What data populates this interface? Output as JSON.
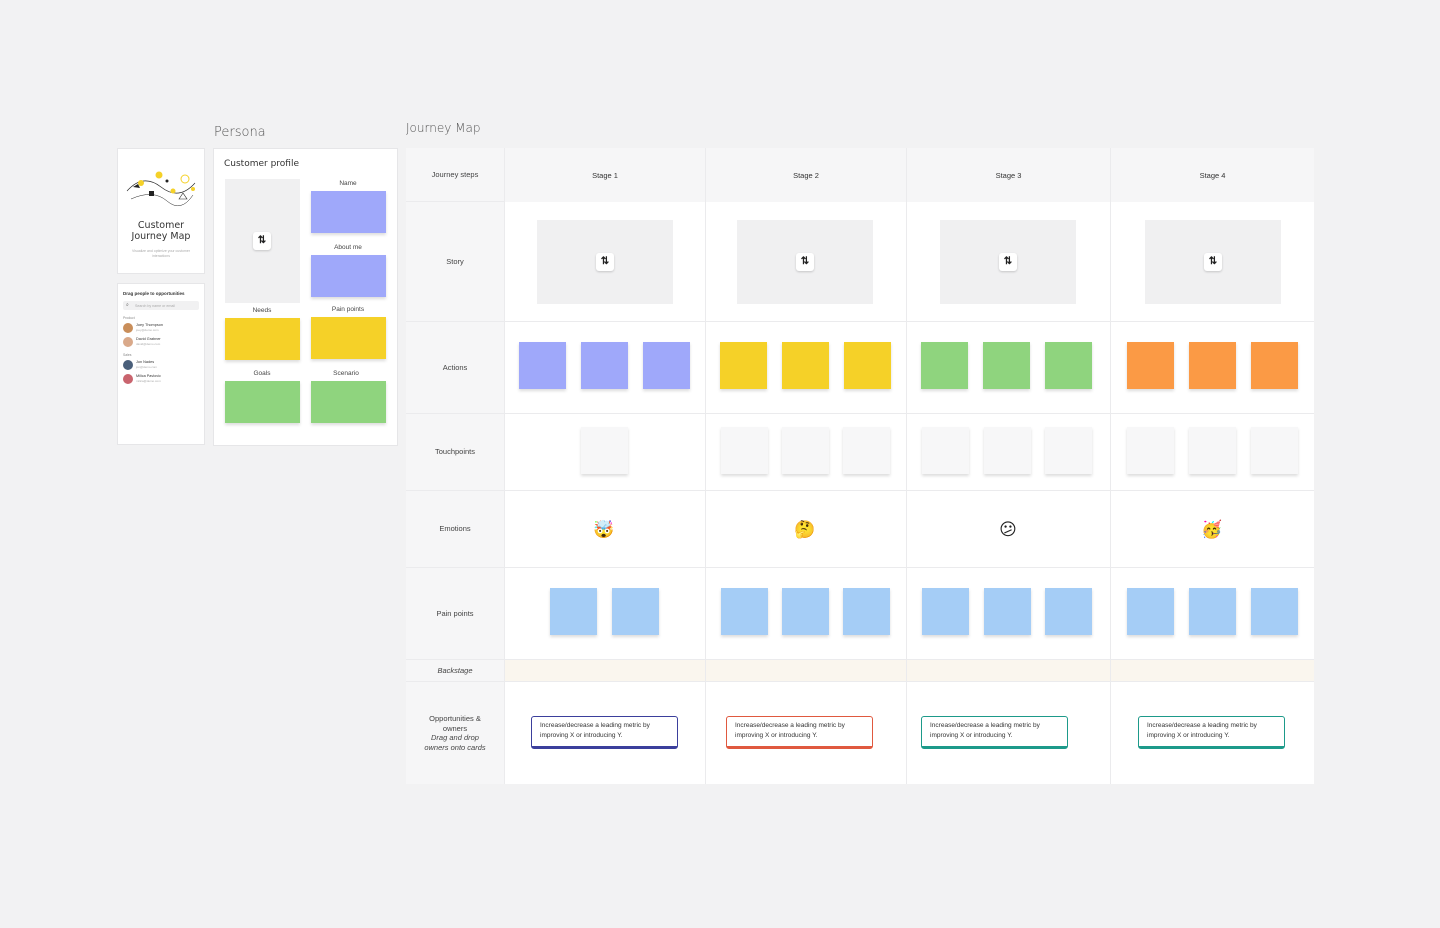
{
  "frames": {
    "persona_label": "Persona",
    "journey_label": "Journey Map"
  },
  "cover": {
    "title_line1": "Customer",
    "title_line2": "Journey Map",
    "subtitle": "Visualize and optimize your customer interactions"
  },
  "people": {
    "title": "Drag people to opportunities",
    "search_placeholder": "Search by name or email",
    "groups": [
      {
        "label": "Product",
        "members": [
          {
            "name": "Joey Thompson",
            "email": "joey@demo.com",
            "color": "#c98e5a"
          },
          {
            "name": "David Grabner",
            "email": "david@demo.com",
            "color": "#d9a98a"
          }
        ]
      },
      {
        "label": "Sales",
        "members": [
          {
            "name": "Jon Nades",
            "email": "jon@demo.com",
            "color": "#4a5f7a"
          },
          {
            "name": "Milica Pavlovic",
            "email": "milica@demo.com",
            "color": "#c9646e"
          }
        ]
      }
    ]
  },
  "profile": {
    "title": "Customer profile",
    "labels": {
      "name": "Name",
      "about": "About me",
      "needs": "Needs",
      "pain": "Pain points",
      "goals": "Goals",
      "scenario": "Scenario"
    },
    "swap_icon": "⇅"
  },
  "journey": {
    "row_headers": {
      "steps": "Journey steps",
      "story": "Story",
      "actions": "Actions",
      "touchpoints": "Touchpoints",
      "emotions": "Emotions",
      "pain_points": "Pain points",
      "backstage": "Backstage",
      "opp_line1": "Opportunities &",
      "opp_line2": "owners",
      "opp_line3": "Drag and drop",
      "opp_line4": "owners onto cards"
    },
    "stages": [
      {
        "title": "Stage 1",
        "action_color": "#9fa8fa",
        "emoji": "🤯",
        "opp_border": "#3b3f9c",
        "opp_text": "Increase/decrease a leading metric by improving X or introducing Y."
      },
      {
        "title": "Stage 2",
        "action_color": "#f5d128",
        "emoji": "🤔",
        "opp_border": "#e0593f",
        "opp_text": "Increase/decrease a leading metric by improving X or introducing Y."
      },
      {
        "title": "Stage 3",
        "action_color": "#8fd47e",
        "emoji": "😕",
        "opp_border": "#1d9a8a",
        "opp_text": "Increase/decrease a leading metric by improving X or introducing Y."
      },
      {
        "title": "Stage 4",
        "action_color": "#fb9a45",
        "emoji": "🥳",
        "opp_border": "#1d9a8a",
        "opp_text": "Increase/decrease a leading metric by improving X or introducing Y."
      }
    ],
    "swap_icon": "⇅"
  },
  "colors": {
    "lavender": "#9fa8fa",
    "yellow": "#f5d128",
    "green": "#8fd47e",
    "orange": "#fb9a45",
    "blue": "#a5cdf6",
    "touch": "#f7f7f8"
  }
}
